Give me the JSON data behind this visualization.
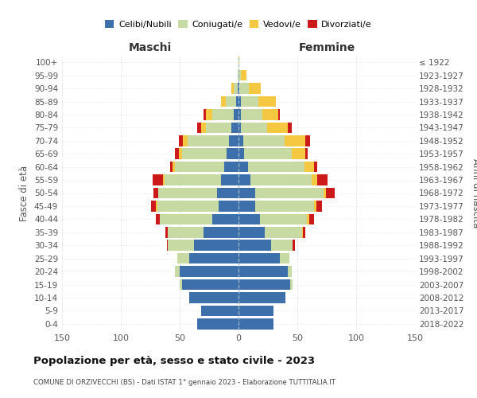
{
  "age_groups_bottom_to_top": [
    "0-4",
    "5-9",
    "10-14",
    "15-19",
    "20-24",
    "25-29",
    "30-34",
    "35-39",
    "40-44",
    "45-49",
    "50-54",
    "55-59",
    "60-64",
    "65-69",
    "70-74",
    "75-79",
    "80-84",
    "85-89",
    "90-94",
    "95-99",
    "100+"
  ],
  "birth_years_bottom_to_top": [
    "2018-2022",
    "2013-2017",
    "2008-2012",
    "2003-2007",
    "1998-2002",
    "1993-1997",
    "1988-1992",
    "1983-1987",
    "1978-1982",
    "1973-1977",
    "1968-1972",
    "1963-1967",
    "1958-1962",
    "1953-1957",
    "1948-1952",
    "1943-1947",
    "1938-1942",
    "1933-1937",
    "1928-1932",
    "1923-1927",
    "≤ 1922"
  ],
  "colors": {
    "celibe": "#3d6faa",
    "coniugato": "#c8daa4",
    "vedovo": "#f5c842",
    "divorziato": "#cc1a1a"
  },
  "maschi": {
    "celibe": [
      35,
      32,
      42,
      48,
      50,
      42,
      38,
      30,
      22,
      17,
      18,
      15,
      12,
      10,
      8,
      6,
      4,
      2,
      1,
      0,
      0
    ],
    "coniugato": [
      0,
      0,
      0,
      2,
      4,
      10,
      22,
      30,
      45,
      52,
      50,
      48,
      42,
      38,
      35,
      22,
      18,
      9,
      3,
      1,
      0
    ],
    "vedovo": [
      0,
      0,
      0,
      0,
      0,
      0,
      0,
      0,
      0,
      1,
      0,
      1,
      2,
      3,
      4,
      4,
      6,
      4,
      2,
      0,
      0
    ],
    "divorziato": [
      0,
      0,
      0,
      0,
      0,
      0,
      1,
      2,
      3,
      4,
      4,
      9,
      2,
      3,
      4,
      3,
      2,
      0,
      0,
      0,
      0
    ]
  },
  "femmine": {
    "nubile": [
      30,
      30,
      40,
      44,
      42,
      35,
      28,
      22,
      18,
      14,
      14,
      10,
      8,
      5,
      4,
      2,
      2,
      2,
      1,
      0,
      0
    ],
    "coniugata": [
      0,
      0,
      0,
      2,
      3,
      8,
      18,
      32,
      40,
      50,
      58,
      52,
      48,
      40,
      35,
      22,
      18,
      15,
      8,
      2,
      0
    ],
    "vedova": [
      0,
      0,
      0,
      0,
      0,
      0,
      0,
      1,
      2,
      2,
      2,
      5,
      8,
      12,
      18,
      18,
      14,
      15,
      10,
      5,
      1
    ],
    "divorziata": [
      0,
      0,
      0,
      0,
      0,
      0,
      2,
      2,
      4,
      5,
      8,
      9,
      3,
      2,
      4,
      3,
      1,
      0,
      0,
      0,
      0
    ]
  },
  "title": "Popolazione per età, sesso e stato civile - 2023",
  "subtitle": "COMUNE DI ORZIVECCHI (BS) - Dati ISTAT 1° gennaio 2023 - Elaborazione TUTTITALIA.IT",
  "xlabel_left": "Maschi",
  "xlabel_right": "Femmine",
  "ylabel_left": "Fasce di età",
  "ylabel_right": "Anni di nascita",
  "xlim": 150,
  "background_color": "#ffffff",
  "grid_color": "#cccccc",
  "legend_labels": [
    "Celibi/Nubili",
    "Coniugati/e",
    "Vedovi/e",
    "Divorziati/e"
  ]
}
